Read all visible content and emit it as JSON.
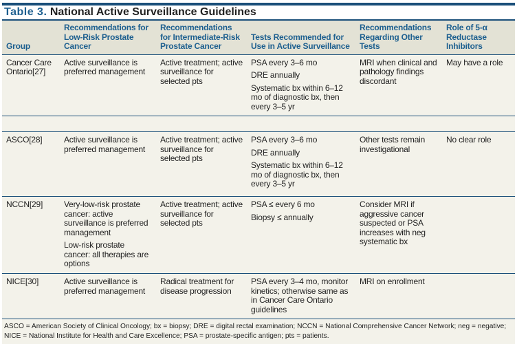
{
  "title": {
    "label": "Table 3.",
    "text": "National Active Surveillance Guidelines"
  },
  "headers": [
    "Group",
    "Recommendations for Low-Risk Prostate Cancer",
    "Recommendations for Intermediate-Risk Prostate Cancer",
    "Tests Recommended for Use in Active Surveillance",
    "Recommendations Regarding Other Tests",
    "Role of 5-α Reductase Inhibitors"
  ],
  "rows": [
    {
      "group": "Cancer Care Ontario[27]",
      "low": [
        "Active surveillance is preferred management"
      ],
      "inter": [
        "Active treatment; active surveillance for selected pts"
      ],
      "tests": [
        "PSA every 3–6 mo",
        "DRE annually",
        "Systematic bx within 6–12 mo of diagnostic bx, then every 3–5 yr"
      ],
      "other": [
        "MRI when clinical and pathology findings discordant"
      ],
      "role": "May have a role"
    },
    {
      "group": "ASCO[28]",
      "low": [
        "Active surveillance is preferred management"
      ],
      "inter": [
        "Active treatment; active surveillance for selected pts"
      ],
      "tests": [
        "PSA every 3–6 mo",
        "DRE annually",
        "Systematic bx within 6–12 mo of diagnostic bx, then every 3–5 yr"
      ],
      "other": [
        "Other tests remain investigational"
      ],
      "role": "No clear role"
    },
    {
      "group": "NCCN[29]",
      "low": [
        "Very-low-risk prostate cancer: active surveillance is preferred management",
        "Low-risk prostate cancer: all therapies are options"
      ],
      "inter": [
        "Active treatment; active surveillance for selected pts"
      ],
      "tests": [
        "PSA ≤ every 6 mo",
        "Biopsy ≤ annually"
      ],
      "other": [
        "Consider MRI if aggressive cancer suspected or PSA increases with neg systematic bx"
      ],
      "role": ""
    },
    {
      "group": "NICE[30]",
      "low": [
        "Active surveillance is preferred management"
      ],
      "inter": [
        "Radical treatment for disease progression"
      ],
      "tests": [
        "PSA every 3–4 mo, monitor kinetics; otherwise same as in Cancer Care Ontario guidelines"
      ],
      "other": [
        "MRI on enrollment"
      ],
      "role": ""
    }
  ],
  "footnote": "ASCO = American Society of Clinical Oncology; bx = biopsy; DRE = digital rectal examination; NCCN = National Comprehensive Cancer Network; neg = negative; NICE = National Institute for Health and Care Excellence; PSA = prostate-specific antigen; pts = patients."
}
